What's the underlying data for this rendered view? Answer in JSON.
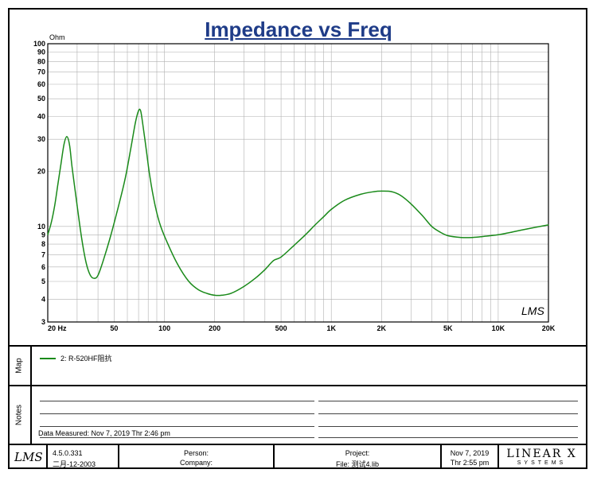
{
  "chart_data": {
    "type": "line",
    "title": "Impedance vs Freq",
    "y_unit": "Ohm",
    "x_scale": "log",
    "y_scale": "log",
    "xlim": [
      20,
      20000
    ],
    "ylim": [
      3,
      100
    ],
    "x_tick_labels": [
      {
        "value": 20,
        "label": "20 Hz"
      },
      {
        "value": 50,
        "label": "50"
      },
      {
        "value": 100,
        "label": "100"
      },
      {
        "value": 200,
        "label": "200"
      },
      {
        "value": 500,
        "label": "500"
      },
      {
        "value": 1000,
        "label": "1K"
      },
      {
        "value": 2000,
        "label": "2K"
      },
      {
        "value": 5000,
        "label": "5K"
      },
      {
        "value": 10000,
        "label": "10K"
      },
      {
        "value": 20000,
        "label": "20K"
      }
    ],
    "y_tick_labels": [
      {
        "value": 3,
        "label": "3"
      },
      {
        "value": 4,
        "label": "4"
      },
      {
        "value": 5,
        "label": "5"
      },
      {
        "value": 6,
        "label": "6"
      },
      {
        "value": 7,
        "label": "7"
      },
      {
        "value": 8,
        "label": "8"
      },
      {
        "value": 9,
        "label": "9"
      },
      {
        "value": 10,
        "label": "10"
      },
      {
        "value": 20,
        "label": "20"
      },
      {
        "value": 30,
        "label": "30"
      },
      {
        "value": 40,
        "label": "40"
      },
      {
        "value": 50,
        "label": "50"
      },
      {
        "value": 60,
        "label": "60"
      },
      {
        "value": 70,
        "label": "70"
      },
      {
        "value": 80,
        "label": "80"
      },
      {
        "value": 90,
        "label": "90"
      },
      {
        "value": 100,
        "label": "100"
      }
    ],
    "grid": true,
    "series": [
      {
        "name": "2: R-520HF阻抗",
        "color": "#1a8a1a",
        "points": [
          [
            20,
            9.0
          ],
          [
            21,
            10.5
          ],
          [
            22,
            13.0
          ],
          [
            23,
            17.0
          ],
          [
            24,
            22.0
          ],
          [
            25,
            28.0
          ],
          [
            26,
            31.0
          ],
          [
            27,
            28.0
          ],
          [
            28,
            21.0
          ],
          [
            30,
            13.0
          ],
          [
            32,
            8.5
          ],
          [
            34,
            6.3
          ],
          [
            36,
            5.4
          ],
          [
            38,
            5.2
          ],
          [
            40,
            5.4
          ],
          [
            43,
            6.5
          ],
          [
            47,
            8.5
          ],
          [
            52,
            12.0
          ],
          [
            58,
            18.0
          ],
          [
            63,
            27.0
          ],
          [
            67,
            37.0
          ],
          [
            70,
            43.0
          ],
          [
            72,
            43.0
          ],
          [
            74,
            37.0
          ],
          [
            78,
            26.0
          ],
          [
            82,
            18.5
          ],
          [
            88,
            13.0
          ],
          [
            95,
            10.0
          ],
          [
            105,
            8.0
          ],
          [
            120,
            6.2
          ],
          [
            140,
            5.0
          ],
          [
            160,
            4.5
          ],
          [
            180,
            4.3
          ],
          [
            200,
            4.2
          ],
          [
            220,
            4.2
          ],
          [
            250,
            4.3
          ],
          [
            300,
            4.7
          ],
          [
            350,
            5.2
          ],
          [
            400,
            5.8
          ],
          [
            450,
            6.5
          ],
          [
            500,
            6.8
          ],
          [
            600,
            7.9
          ],
          [
            700,
            9.0
          ],
          [
            800,
            10.2
          ],
          [
            900,
            11.3
          ],
          [
            1000,
            12.4
          ],
          [
            1200,
            13.9
          ],
          [
            1500,
            15.0
          ],
          [
            1800,
            15.5
          ],
          [
            2000,
            15.6
          ],
          [
            2300,
            15.5
          ],
          [
            2600,
            14.8
          ],
          [
            3000,
            13.3
          ],
          [
            3500,
            11.5
          ],
          [
            4000,
            10.0
          ],
          [
            4500,
            9.3
          ],
          [
            5000,
            8.9
          ],
          [
            6000,
            8.7
          ],
          [
            7000,
            8.7
          ],
          [
            8000,
            8.8
          ],
          [
            10000,
            9.0
          ],
          [
            12000,
            9.3
          ],
          [
            15000,
            9.7
          ],
          [
            20000,
            10.2
          ]
        ]
      }
    ]
  },
  "map_label": "Map",
  "notes_label": "Notes",
  "measured": "Data Measured: Nov  7, 2019  Thr  2:46 pm",
  "footer": {
    "version": "4.5.0.331",
    "build_date": "二月-12-2003",
    "person": "Person:",
    "company": "Company:",
    "project": "Project:",
    "file": "File: 测试4.lib",
    "date": "Nov  7, 2019",
    "time": "Thr  2:55 pm",
    "brand": "LINEAR X",
    "brand_sub": "SYSTEMS",
    "logo_text": "LMS"
  },
  "watermark": "LMS",
  "colors": {
    "title": "#1f3c88",
    "curve": "#1a8a1a",
    "grid": "#b0b0b0"
  }
}
